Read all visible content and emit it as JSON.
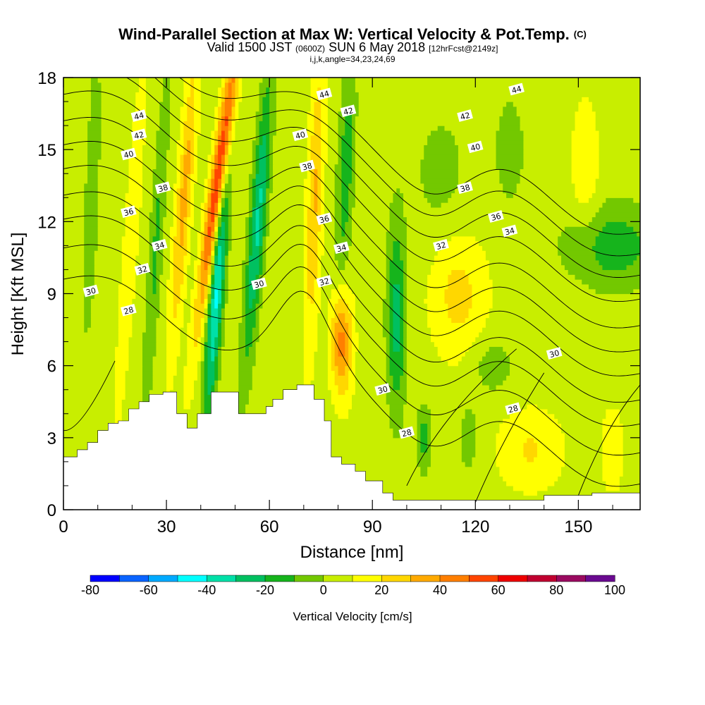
{
  "title": {
    "main": "Wind-Parallel Section at Max W: Vertical Velocity & Pot.Temp.",
    "copyright": "(C)",
    "valid_prefix": "Valid 1500 JST",
    "valid_zulu": "(0600Z)",
    "valid_date": "SUN 6 May 2018",
    "forecast": "[12hrFcst@2149z]",
    "section_params": "i,j,k,angle=34,23,24,69"
  },
  "chart_data": {
    "type": "heatmap",
    "xlabel": "Distance [nm]",
    "ylabel": "Height [Kft MSL]",
    "xlim": [
      0,
      168
    ],
    "ylim": [
      0,
      18
    ],
    "x_ticks": [
      0,
      30,
      60,
      90,
      120,
      150
    ],
    "y_ticks": [
      0,
      3,
      6,
      9,
      12,
      15,
      18
    ],
    "colorbar": {
      "label": "Vertical Velocity [cm/s]",
      "levels": [
        -80,
        -70,
        -60,
        -50,
        -40,
        -30,
        -20,
        -10,
        0,
        10,
        20,
        30,
        40,
        50,
        60,
        70,
        80,
        90,
        100
      ],
      "tick_labels": [
        "-80",
        "-60",
        "-40",
        "-20",
        "0",
        "20",
        "40",
        "60",
        "80",
        "100"
      ],
      "colors": [
        "#0000ff",
        "#0a64ff",
        "#00aaff",
        "#00ffff",
        "#00e0a8",
        "#00c060",
        "#16b41c",
        "#73c800",
        "#c8ee00",
        "#ffff00",
        "#ffd700",
        "#ffaa00",
        "#ff7f00",
        "#ff4500",
        "#ee0000",
        "#c00030",
        "#9a0a60",
        "#6a0a90"
      ]
    },
    "velocity_features": [
      {
        "x": 49,
        "y": 13,
        "value": 65
      },
      {
        "x": 47,
        "y": 7,
        "value": -45
      },
      {
        "x": 56,
        "y": 12,
        "value": -35
      },
      {
        "x": 81,
        "y": 6.5,
        "value": 45
      },
      {
        "x": 97,
        "y": 8,
        "value": -25
      },
      {
        "x": 115,
        "y": 9,
        "value": 20
      },
      {
        "x": 136,
        "y": 2.5,
        "value": 20
      },
      {
        "x": 160,
        "y": 11,
        "value": -25
      }
    ],
    "terrain": [
      [
        0,
        2.2
      ],
      [
        4,
        2.5
      ],
      [
        7,
        2.8
      ],
      [
        10,
        3.3
      ],
      [
        13,
        3.6
      ],
      [
        16,
        3.7
      ],
      [
        19,
        4.2
      ],
      [
        22,
        4.5
      ],
      [
        25,
        4.8
      ],
      [
        29,
        4.9
      ],
      [
        33,
        4.0
      ],
      [
        36,
        3.4
      ],
      [
        39,
        4.0
      ],
      [
        43,
        4.9
      ],
      [
        51,
        4.0
      ],
      [
        59,
        4.3
      ],
      [
        61,
        4.6
      ],
      [
        64,
        5.0
      ],
      [
        68,
        5.2
      ],
      [
        73,
        4.6
      ],
      [
        76,
        3.7
      ],
      [
        78,
        2.2
      ],
      [
        81,
        1.9
      ],
      [
        85,
        1.6
      ],
      [
        88,
        1.2
      ],
      [
        93,
        0.7
      ],
      [
        96,
        0.4
      ],
      [
        140,
        0.6
      ],
      [
        154,
        0.7
      ],
      [
        168,
        0.4
      ]
    ],
    "isentropes": [
      {
        "theta": 28,
        "labels": [
          {
            "x": 19,
            "y": 8.3
          },
          {
            "x": 131,
            "y": 4.2
          },
          {
            "x": 100,
            "y": 3.2
          }
        ]
      },
      {
        "theta": 30,
        "labels": [
          {
            "x": 8,
            "y": 9.1
          },
          {
            "x": 57,
            "y": 9.4
          },
          {
            "x": 93,
            "y": 5.0
          },
          {
            "x": 143,
            "y": 6.5
          }
        ]
      },
      {
        "theta": 32,
        "labels": [
          {
            "x": 23,
            "y": 10.0
          },
          {
            "x": 76,
            "y": 9.5
          },
          {
            "x": 110,
            "y": 11.0
          }
        ]
      },
      {
        "theta": 34,
        "labels": [
          {
            "x": 28,
            "y": 11.0
          },
          {
            "x": 81,
            "y": 10.9
          },
          {
            "x": 130,
            "y": 11.6
          }
        ]
      },
      {
        "theta": 36,
        "labels": [
          {
            "x": 19,
            "y": 12.4
          },
          {
            "x": 76,
            "y": 12.1
          },
          {
            "x": 126,
            "y": 12.2
          }
        ]
      },
      {
        "theta": 38,
        "labels": [
          {
            "x": 29,
            "y": 13.4
          },
          {
            "x": 71,
            "y": 14.3
          },
          {
            "x": 117,
            "y": 13.4
          }
        ]
      },
      {
        "theta": 40,
        "labels": [
          {
            "x": 19,
            "y": 14.8
          },
          {
            "x": 69,
            "y": 15.6
          },
          {
            "x": 120,
            "y": 15.1
          }
        ]
      },
      {
        "theta": 42,
        "labels": [
          {
            "x": 22,
            "y": 15.6
          },
          {
            "x": 83,
            "y": 16.6
          },
          {
            "x": 117,
            "y": 16.4
          }
        ]
      },
      {
        "theta": 44,
        "labels": [
          {
            "x": 22,
            "y": 16.4
          },
          {
            "x": 76,
            "y": 17.3
          },
          {
            "x": 132,
            "y": 17.5
          }
        ]
      }
    ],
    "label_values": [
      "28",
      "30",
      "32",
      "34",
      "36",
      "38",
      "40",
      "42",
      "44"
    ]
  }
}
